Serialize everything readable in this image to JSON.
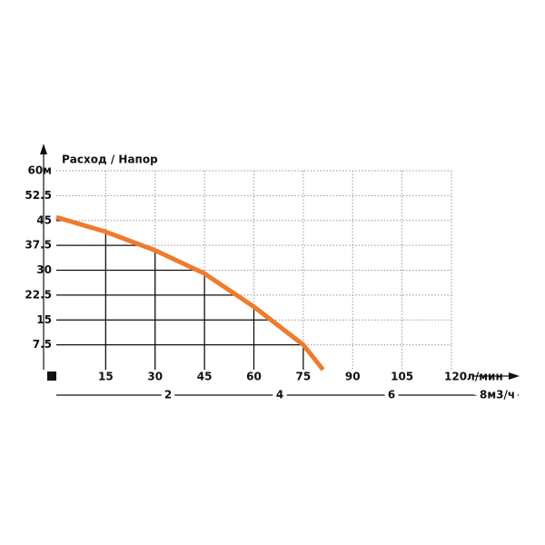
{
  "chart_data": {
    "type": "line",
    "title": "Расход / Напор",
    "series": [
      {
        "color": "#f07b2c",
        "x": [
          0,
          15,
          30,
          45,
          60,
          75,
          81
        ],
        "values": [
          46,
          41.6,
          36,
          29,
          19,
          7.5,
          0
        ]
      }
    ],
    "xlim": [
      0,
      120
    ],
    "xticks": [
      15,
      30,
      45,
      60,
      75,
      90,
      105,
      {
        "value": 120,
        "label": "120л/мин"
      }
    ],
    "ylim": [
      0,
      60
    ],
    "yticks": [
      7.5,
      15,
      22.5,
      30,
      37.5,
      45,
      52.5,
      {
        "value": 60,
        "label": "60м"
      }
    ],
    "x2lim": [
      0,
      8.5
    ],
    "x2ticks": [
      2,
      4,
      6,
      {
        "value": 8,
        "label": "8м3/ч"
      }
    ],
    "grid": true
  }
}
